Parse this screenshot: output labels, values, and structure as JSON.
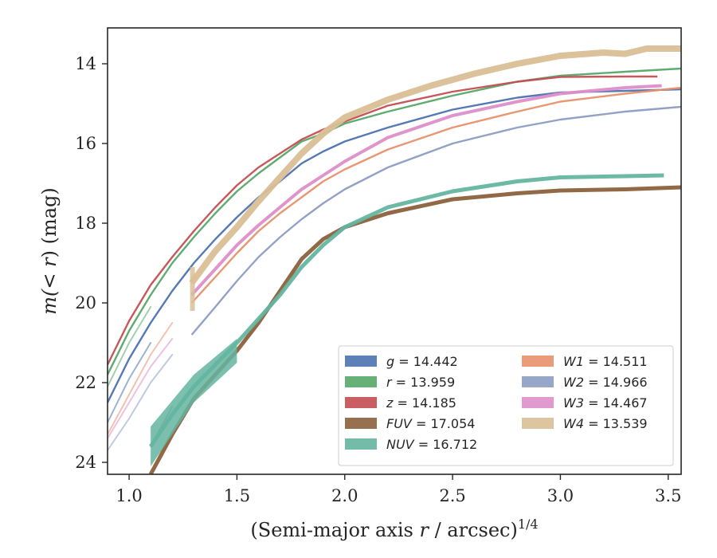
{
  "chart_data": {
    "type": "line",
    "xlabel": "(Semi-major axis r / arcsec)",
    "xlabel_var": "r",
    "xlabel_pre": "(Semi-major axis ",
    "xlabel_post": " / arcsec)",
    "xlabel_sup": "1/4",
    "ylabel_pre": "m(",
    "ylabel_mid": "< r",
    "ylabel_post": ") (mag)",
    "xlim": [
      0.9,
      3.56
    ],
    "ylim": [
      24.3,
      13.1
    ],
    "y_inverted": true,
    "xticks": [
      1.0,
      1.5,
      2.0,
      2.5,
      3.0,
      3.5
    ],
    "xtick_labels": [
      "1.0",
      "1.5",
      "2.0",
      "2.5",
      "3.0",
      "3.5"
    ],
    "yticks": [
      14,
      16,
      18,
      20,
      22,
      24
    ],
    "ytick_labels": [
      "14",
      "16",
      "18",
      "20",
      "22",
      "24"
    ],
    "grid": false,
    "legend_position": "bottom-right",
    "legend_columns": 2,
    "series": [
      {
        "name": "g = 14.442",
        "band": "g",
        "value": "14.442",
        "color": "#4c72b0",
        "width": 2.4,
        "faint_x": [
          0.9,
          1.0,
          1.1
        ],
        "faint_y": [
          23.0,
          21.9,
          21.0
        ],
        "x": [
          0.9,
          1.0,
          1.1,
          1.2,
          1.3,
          1.4,
          1.5,
          1.6,
          1.7,
          1.8,
          1.9,
          2.0,
          2.2,
          2.5,
          2.8,
          3.0,
          3.3,
          3.56
        ],
        "y": [
          22.5,
          21.4,
          20.5,
          19.7,
          19.0,
          18.4,
          17.85,
          17.35,
          16.95,
          16.5,
          16.2,
          15.95,
          15.6,
          15.15,
          14.85,
          14.72,
          14.68,
          14.64
        ]
      },
      {
        "name": "r = 13.959",
        "band": "r",
        "value": "13.959",
        "color": "#55a868",
        "width": 2.4,
        "faint_x": [
          0.9,
          1.0,
          1.1
        ],
        "faint_y": [
          22.1,
          21.0,
          20.1
        ],
        "x": [
          0.9,
          1.0,
          1.1,
          1.2,
          1.3,
          1.4,
          1.5,
          1.6,
          1.7,
          1.8,
          1.9,
          2.0,
          2.2,
          2.5,
          2.8,
          3.0,
          3.3,
          3.56
        ],
        "y": [
          21.8,
          20.7,
          19.8,
          19.0,
          18.35,
          17.75,
          17.2,
          16.75,
          16.35,
          15.95,
          15.75,
          15.5,
          15.2,
          14.8,
          14.45,
          14.3,
          14.2,
          14.12
        ]
      },
      {
        "name": "z = 14.185",
        "band": "z",
        "value": "14.185",
        "color": "#c44e52",
        "width": 2.4,
        "x": [
          0.9,
          1.0,
          1.1,
          1.2,
          1.3,
          1.4,
          1.5,
          1.6,
          1.7,
          1.8,
          1.9,
          2.0,
          2.2,
          2.5,
          2.8,
          3.0,
          3.3,
          3.45
        ],
        "y": [
          21.55,
          20.45,
          19.55,
          18.85,
          18.2,
          17.6,
          17.05,
          16.6,
          16.25,
          15.9,
          15.65,
          15.45,
          15.05,
          14.7,
          14.45,
          14.33,
          14.32,
          14.32
        ]
      },
      {
        "name": "FUV = 17.054",
        "band": "FUV",
        "value": "17.054",
        "color": "#8c613c",
        "width": 5,
        "faint_x": [
          1.1,
          1.2
        ],
        "faint_y": [
          23.6,
          22.6
        ],
        "x": [
          1.1,
          1.2,
          1.3,
          1.4,
          1.5,
          1.6,
          1.7,
          1.8,
          1.9,
          2.0,
          2.2,
          2.5,
          2.8,
          3.0,
          3.3,
          3.56
        ],
        "y": [
          24.3,
          23.3,
          22.4,
          21.8,
          21.2,
          20.5,
          19.7,
          18.9,
          18.4,
          18.1,
          17.75,
          17.4,
          17.25,
          17.18,
          17.15,
          17.1
        ]
      },
      {
        "name": "NUV = 16.712",
        "band": "NUV",
        "value": "16.712",
        "color": "#64b5a0",
        "width": 5,
        "band_x": [
          1.1,
          1.3,
          1.5
        ],
        "band_lo": [
          23.1,
          21.8,
          20.9
        ],
        "band_hi": [
          24.1,
          22.5,
          21.5
        ],
        "x": [
          1.1,
          1.2,
          1.3,
          1.4,
          1.5,
          1.6,
          1.7,
          1.8,
          1.9,
          2.0,
          2.2,
          2.5,
          2.8,
          3.0,
          3.3,
          3.48
        ],
        "y": [
          23.6,
          22.8,
          22.1,
          21.55,
          21.0,
          20.4,
          19.8,
          19.1,
          18.55,
          18.1,
          17.6,
          17.2,
          16.95,
          16.85,
          16.82,
          16.8
        ]
      },
      {
        "name": "W1 = 14.511",
        "band": "W1",
        "value": "14.511",
        "color": "#e8906b",
        "width": 2.4,
        "faint_x": [
          0.9,
          1.0,
          1.1,
          1.2
        ],
        "faint_y": [
          23.3,
          22.3,
          21.3,
          20.5
        ],
        "x": [
          1.29,
          1.4,
          1.5,
          1.6,
          1.7,
          1.8,
          1.9,
          2.0,
          2.2,
          2.5,
          2.8,
          3.0,
          3.3,
          3.56
        ],
        "y": [
          20.0,
          19.35,
          18.75,
          18.2,
          17.75,
          17.35,
          16.95,
          16.65,
          16.15,
          15.6,
          15.2,
          14.95,
          14.75,
          14.6
        ]
      },
      {
        "name": "W2 = 14.966",
        "band": "W2",
        "value": "14.966",
        "color": "#8c9dc4",
        "width": 2.4,
        "faint_x": [
          0.9,
          1.0,
          1.1,
          1.2
        ],
        "faint_y": [
          23.7,
          22.9,
          22.0,
          21.3
        ],
        "x": [
          1.29,
          1.4,
          1.5,
          1.6,
          1.7,
          1.8,
          1.9,
          2.0,
          2.2,
          2.5,
          2.8,
          3.0,
          3.3,
          3.56
        ],
        "y": [
          20.8,
          20.1,
          19.45,
          18.85,
          18.35,
          17.9,
          17.5,
          17.15,
          16.6,
          16.0,
          15.6,
          15.4,
          15.2,
          15.08
        ]
      },
      {
        "name": "W3 = 14.467",
        "band": "W3",
        "value": "14.467",
        "color": "#dd8fc8",
        "width": 4,
        "faint_x": [
          0.9,
          1.0,
          1.1,
          1.2
        ],
        "faint_y": [
          23.4,
          22.5,
          21.6,
          20.9
        ],
        "x": [
          1.29,
          1.4,
          1.5,
          1.6,
          1.7,
          1.8,
          1.9,
          2.0,
          2.2,
          2.5,
          2.8,
          3.0,
          3.3,
          3.47
        ],
        "y": [
          19.8,
          19.15,
          18.55,
          18.05,
          17.6,
          17.15,
          16.8,
          16.45,
          15.85,
          15.3,
          14.95,
          14.75,
          14.6,
          14.55
        ]
      },
      {
        "name": "W4 = 13.539",
        "band": "W4",
        "value": "13.539",
        "color": "#d9bf96",
        "width": 8,
        "band_x": [
          1.29
        ],
        "band_lo": [
          19.1
        ],
        "band_hi": [
          20.2
        ],
        "x": [
          1.29,
          1.4,
          1.5,
          1.6,
          1.7,
          1.8,
          1.9,
          2.0,
          2.2,
          2.4,
          2.6,
          2.8,
          3.0,
          3.2,
          3.3,
          3.4,
          3.56
        ],
        "y": [
          19.5,
          18.7,
          18.1,
          17.45,
          16.85,
          16.25,
          15.75,
          15.35,
          14.9,
          14.55,
          14.25,
          14.0,
          13.8,
          13.72,
          13.75,
          13.62,
          13.62
        ]
      }
    ]
  }
}
